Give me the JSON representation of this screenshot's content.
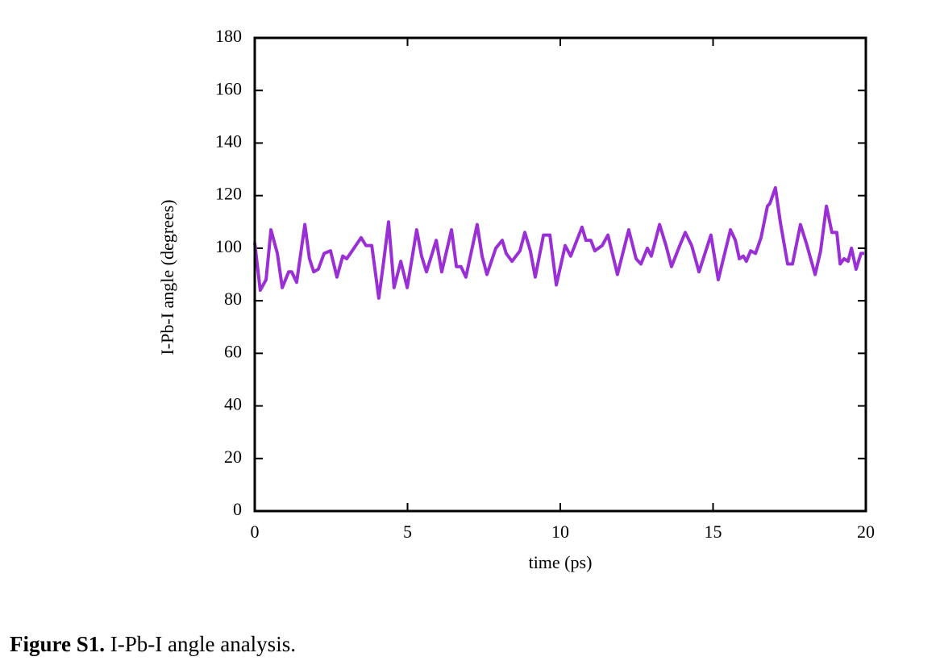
{
  "chart_data": {
    "type": "line",
    "xlabel": "time (ps)",
    "ylabel": "I-Pb-I angle (degrees)",
    "x": [
      0.0,
      0.18,
      0.37,
      0.53,
      0.74,
      0.9,
      1.11,
      1.21,
      1.37,
      1.64,
      1.79,
      1.93,
      2.08,
      2.27,
      2.48,
      2.69,
      2.88,
      3.01,
      3.19,
      3.48,
      3.64,
      3.83,
      4.06,
      4.22,
      4.38,
      4.56,
      4.78,
      4.99,
      5.3,
      5.46,
      5.62,
      5.94,
      6.12,
      6.44,
      6.6,
      6.75,
      6.91,
      7.28,
      7.44,
      7.6,
      7.89,
      8.1,
      8.23,
      8.42,
      8.68,
      8.84,
      9.02,
      9.18,
      9.45,
      9.66,
      9.87,
      10.16,
      10.34,
      10.71,
      10.84,
      11.0,
      11.13,
      11.37,
      11.56,
      11.87,
      12.24,
      12.48,
      12.64,
      12.85,
      12.98,
      13.25,
      13.46,
      13.64,
      13.91,
      14.09,
      14.3,
      14.54,
      14.93,
      15.17,
      15.57,
      15.73,
      15.86,
      15.99,
      16.09,
      16.23,
      16.39,
      16.57,
      16.78,
      16.86,
      17.04,
      17.2,
      17.44,
      17.6,
      17.86,
      18.05,
      18.34,
      18.52,
      18.71,
      18.89,
      19.05,
      19.16,
      19.29,
      19.42,
      19.53,
      19.68,
      19.84,
      19.95
    ],
    "values": [
      102,
      84,
      88,
      107,
      98,
      85,
      91,
      91,
      87,
      109,
      96,
      91,
      92,
      98,
      99,
      89,
      97,
      96,
      99,
      104,
      101,
      101,
      81,
      95,
      110,
      85,
      95,
      85,
      107,
      97,
      91,
      103,
      91,
      107,
      93,
      93,
      89,
      109,
      97,
      90,
      100,
      103,
      98,
      95,
      99,
      106,
      99,
      89,
      105,
      105,
      86,
      101,
      97,
      108,
      103,
      103,
      99,
      101,
      105,
      90,
      107,
      96,
      94,
      100,
      97,
      109,
      101,
      93,
      101,
      106,
      101,
      91,
      105,
      88,
      107,
      103,
      96,
      97,
      95,
      99,
      98,
      104,
      116,
      117,
      123,
      110,
      94,
      94,
      109,
      102,
      90,
      99,
      116,
      106,
      106,
      94,
      96,
      95,
      100,
      92,
      98,
      98
    ],
    "color": "#9b2fd6",
    "xlim": [
      0,
      20
    ],
    "xticks": [
      0,
      5,
      10,
      15,
      20
    ],
    "ylim": [
      0,
      180
    ],
    "yticks": [
      0,
      20,
      40,
      60,
      80,
      100,
      120,
      140,
      160,
      180
    ],
    "grid": false
  },
  "caption": {
    "label": "Figure S1.",
    "text": "I-Pb-I angle analysis."
  }
}
